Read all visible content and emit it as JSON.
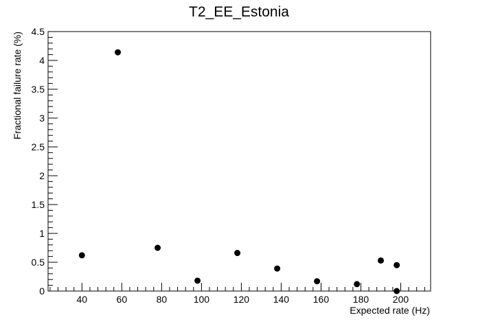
{
  "chart_data": {
    "type": "scatter",
    "title": "T2_EE_Estonia",
    "xlabel": "Expected rate (Hz)",
    "ylabel": "Fractional failure rate (%)",
    "xlim": [
      23,
      215
    ],
    "ylim": [
      0,
      4.5
    ],
    "x_ticks": [
      40,
      60,
      80,
      100,
      120,
      140,
      160,
      180,
      200
    ],
    "x_tick_labels": [
      "40",
      "60",
      "80",
      "100",
      "120",
      "140",
      "160",
      "180",
      "200"
    ],
    "y_ticks": [
      0,
      0.5,
      1,
      1.5,
      2,
      2.5,
      3,
      3.5,
      4,
      4.5
    ],
    "y_tick_labels": [
      "0",
      "0.5",
      "1",
      "1.5",
      "2",
      "2.5",
      "3",
      "3.5",
      "4",
      "4.5"
    ],
    "grid": false,
    "legend": "none",
    "marker_color": "#000000",
    "points": [
      {
        "x": 40,
        "y": 0.62
      },
      {
        "x": 58,
        "y": 4.14
      },
      {
        "x": 78,
        "y": 0.75
      },
      {
        "x": 98,
        "y": 0.18
      },
      {
        "x": 118,
        "y": 0.66
      },
      {
        "x": 138,
        "y": 0.39
      },
      {
        "x": 158,
        "y": 0.17
      },
      {
        "x": 178,
        "y": 0.12
      },
      {
        "x": 190,
        "y": 0.53
      },
      {
        "x": 198,
        "y": 0.45
      },
      {
        "x": 198,
        "y": 0.0
      }
    ]
  }
}
